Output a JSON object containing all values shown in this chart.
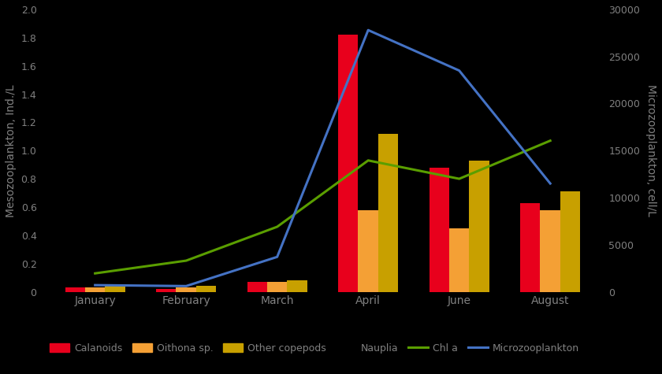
{
  "months": [
    "January",
    "February",
    "March",
    "April",
    "June",
    "August"
  ],
  "month_positions": [
    0,
    1,
    2,
    3,
    4,
    5
  ],
  "calanoids": [
    0.03,
    0.02,
    0.07,
    1.82,
    0.88,
    0.63
  ],
  "oithona": [
    0.03,
    0.03,
    0.07,
    0.58,
    0.45,
    0.58
  ],
  "other_copepods": [
    0.05,
    0.04,
    0.08,
    1.12,
    0.93,
    0.71
  ],
  "chl_a": [
    0.13,
    0.22,
    0.46,
    0.93,
    0.8,
    1.07
  ],
  "microzooplankton": [
    700,
    600,
    3700,
    27800,
    23500,
    11500
  ],
  "bar_width": 0.22,
  "calanoids_color": "#e8001c",
  "oithona_color": "#f4a035",
  "other_copepods_color": "#c8a000",
  "chl_a_color": "#5a9e00",
  "microzooplankton_color": "#4472c4",
  "left_ylabel": "Mesozooplankton, Ind./L",
  "right_ylabel": "Microzooplankton, cell/L",
  "ylim_left": [
    0,
    2.0
  ],
  "ylim_right": [
    0,
    30000
  ],
  "yticks_left": [
    0,
    0.2,
    0.4,
    0.6,
    0.8,
    1.0,
    1.2,
    1.4,
    1.6,
    1.8,
    2.0
  ],
  "yticks_right": [
    0,
    5000,
    10000,
    15000,
    20000,
    25000,
    30000
  ],
  "bg_color": "#000000",
  "tick_color": "#808080",
  "label_color": "#808080",
  "spine_color": "#808080"
}
